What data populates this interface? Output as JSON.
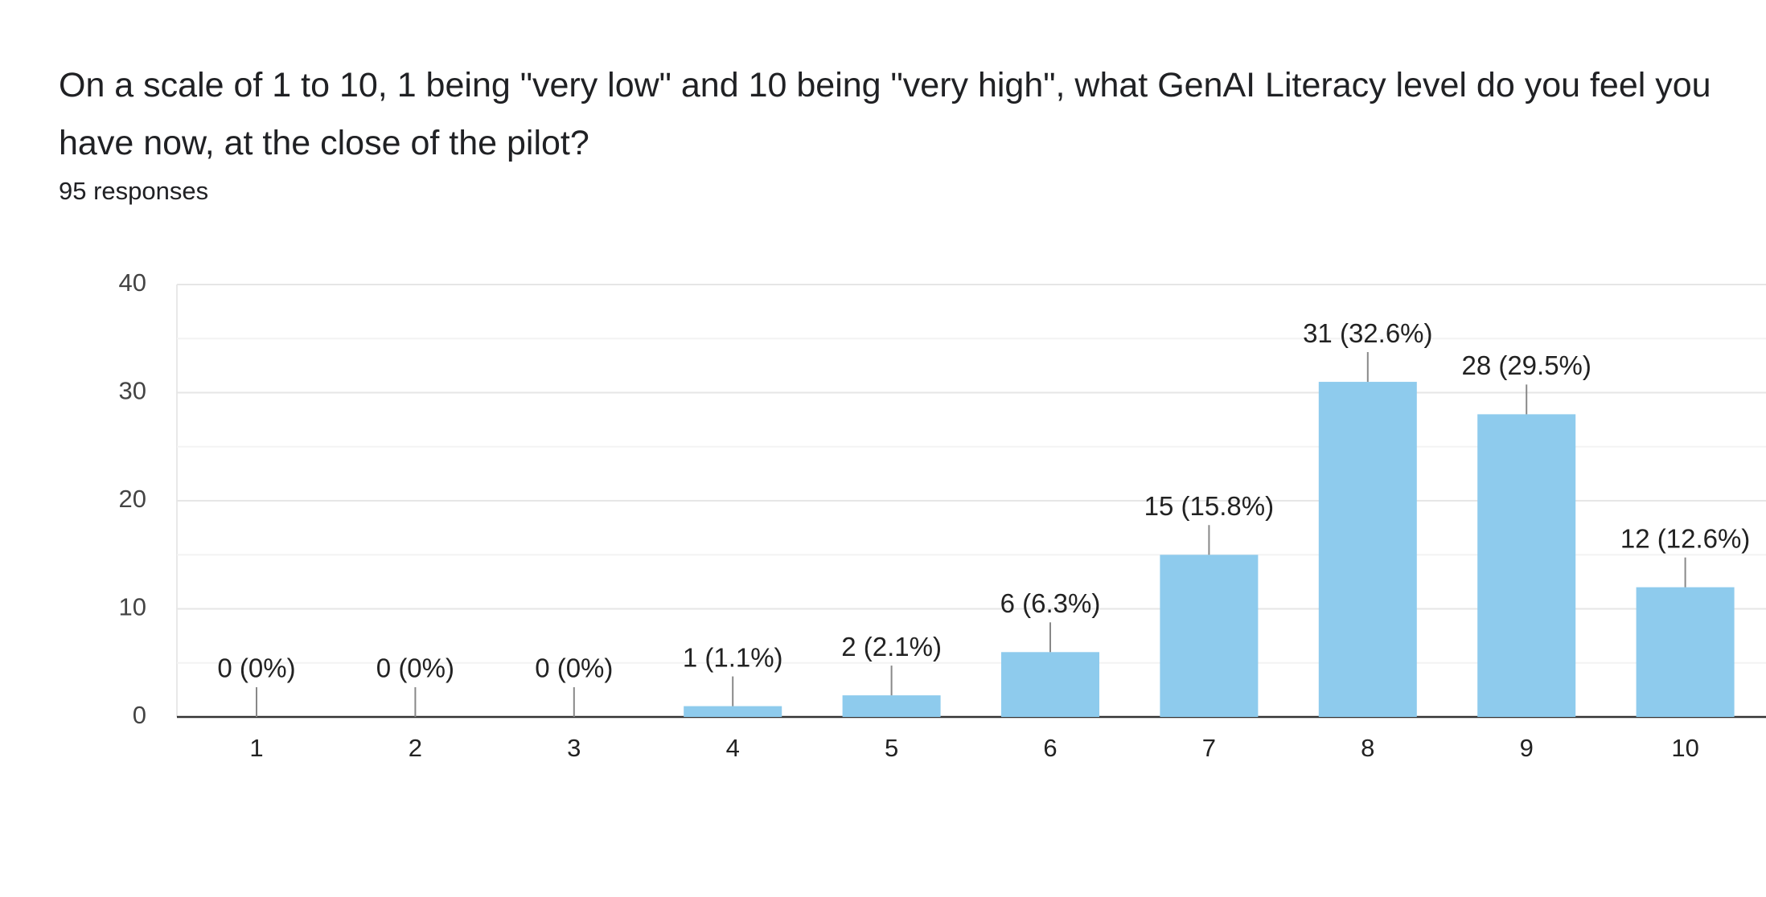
{
  "chart_data": {
    "type": "bar",
    "title": "On a scale of 1 to 10, 1 being \"very low\" and 10 being \"very high\", what GenAI Literacy level do you feel you have now, at the close of the pilot?",
    "subtitle": "95 responses",
    "categories": [
      "1",
      "2",
      "3",
      "4",
      "5",
      "6",
      "7",
      "8",
      "9",
      "10"
    ],
    "values": [
      0,
      0,
      0,
      1,
      2,
      6,
      15,
      31,
      28,
      12
    ],
    "value_labels": [
      "0 (0%)",
      "0 (0%)",
      "0 (0%)",
      "1 (1.1%)",
      "2 (2.1%)",
      "6 (6.3%)",
      "15 (15.8%)",
      "31 (32.6%)",
      "28 (29.5%)",
      "12 (12.6%)"
    ],
    "color": "#8ecbed",
    "ylim": [
      0,
      40
    ],
    "yticks": [
      0,
      10,
      20,
      30,
      40
    ],
    "minor_yticks": [
      5,
      15,
      25,
      35
    ],
    "grid": true
  }
}
